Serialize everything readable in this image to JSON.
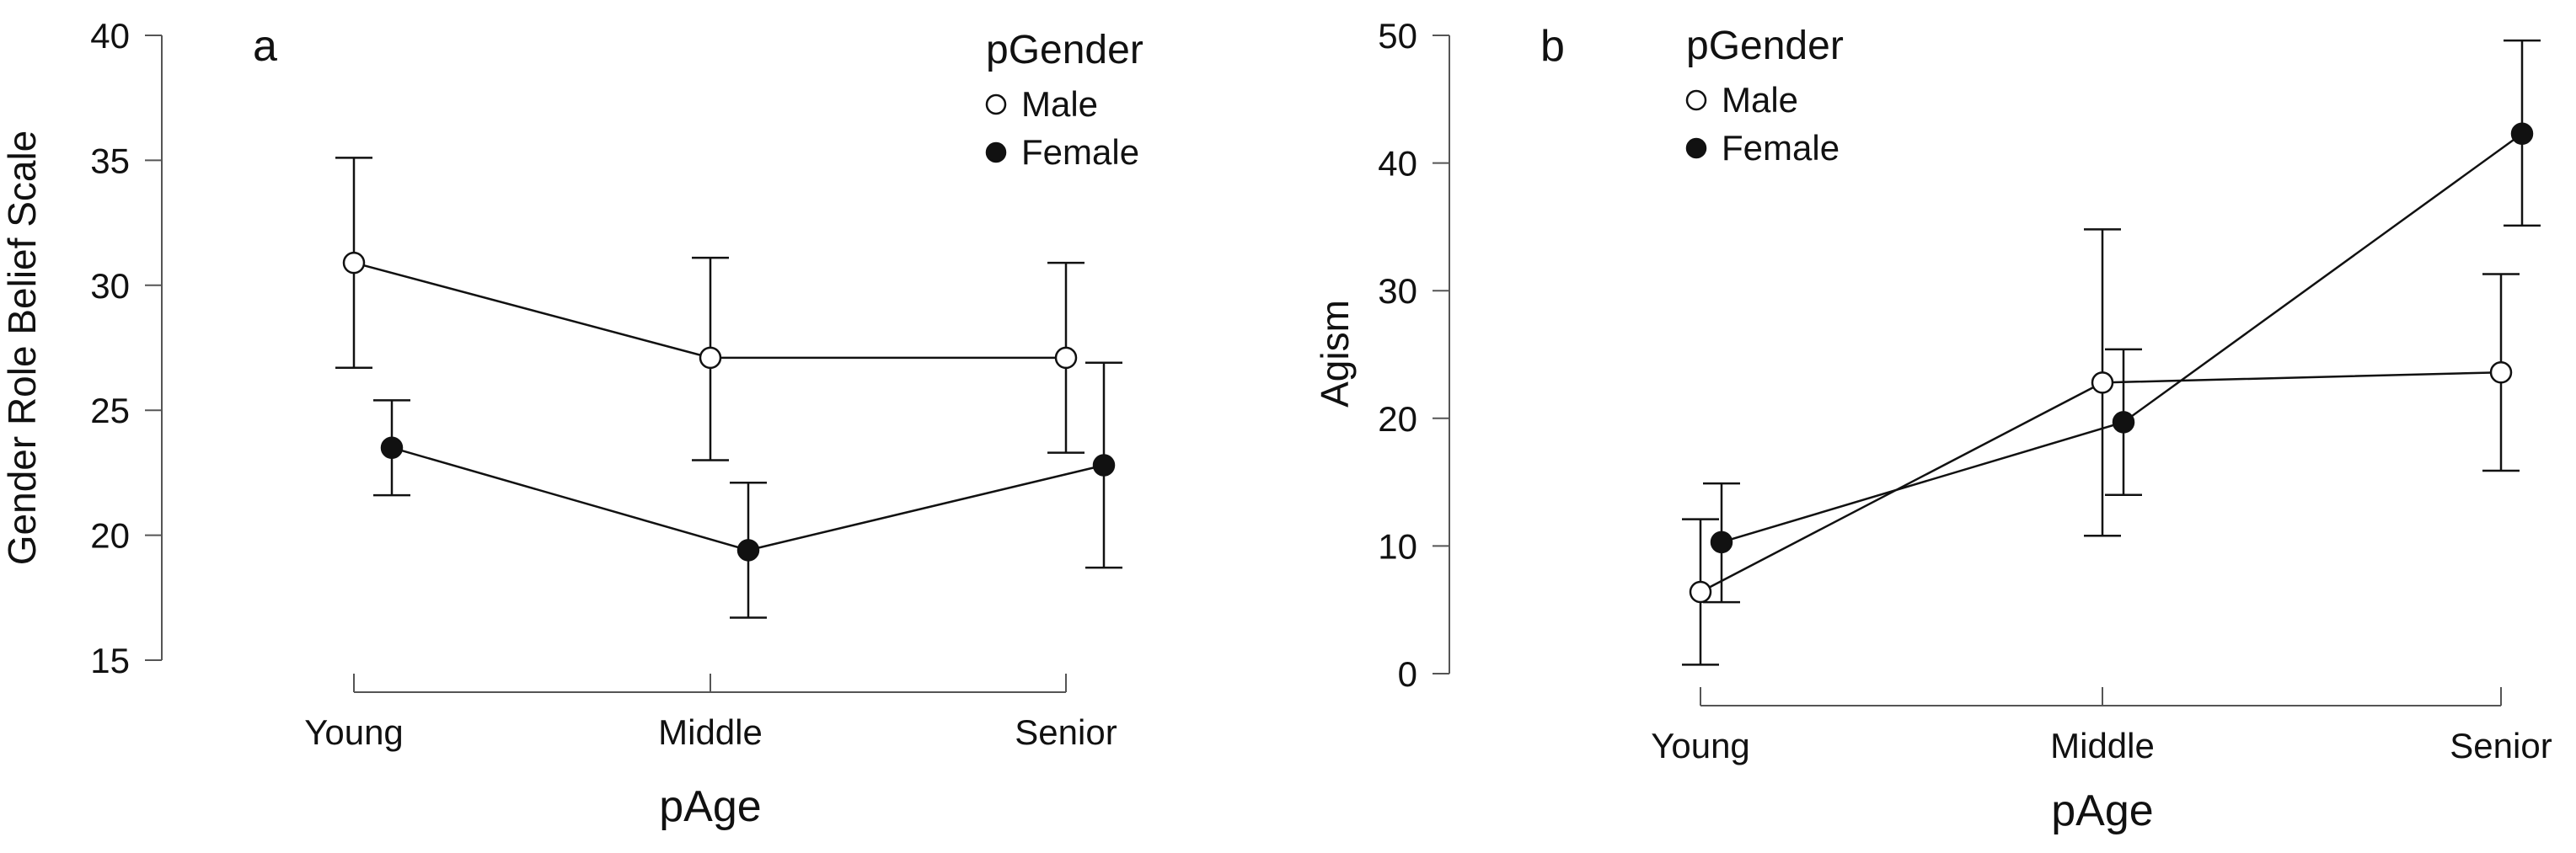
{
  "chart_data": [
    {
      "type": "line",
      "panel_label": "a",
      "title": "",
      "xlabel": "pAge",
      "ylabel": "Gender Role Belief Scale",
      "categories": [
        "Young",
        "Middle",
        "Senior"
      ],
      "ylim": [
        15,
        40
      ],
      "yticks": [
        15,
        20,
        25,
        30,
        35,
        40
      ],
      "grid": false,
      "legend": {
        "title": "pGender",
        "position": "top-right"
      },
      "series": [
        {
          "name": "Male",
          "marker": "open-circle",
          "values": [
            30.9,
            27.1,
            27.1
          ],
          "error_low": [
            26.7,
            23.0,
            23.3
          ],
          "error_high": [
            35.1,
            31.1,
            30.9
          ]
        },
        {
          "name": "Female",
          "marker": "filled-circle",
          "values": [
            23.5,
            19.4,
            22.8
          ],
          "error_low": [
            21.6,
            16.7,
            18.7
          ],
          "error_high": [
            25.4,
            22.1,
            26.9
          ]
        }
      ]
    },
    {
      "type": "line",
      "panel_label": "b",
      "title": "",
      "xlabel": "pAge",
      "ylabel": "Agism",
      "categories": [
        "Young",
        "Middle",
        "Senior"
      ],
      "ylim": [
        0,
        50
      ],
      "yticks": [
        0,
        10,
        20,
        30,
        40,
        50
      ],
      "grid": false,
      "legend": {
        "title": "pGender",
        "position": "top-left"
      },
      "series": [
        {
          "name": "Male",
          "marker": "open-circle",
          "values": [
            6.4,
            22.8,
            23.6
          ],
          "error_low": [
            0.7,
            10.8,
            15.9
          ],
          "error_high": [
            12.1,
            34.8,
            31.3
          ]
        },
        {
          "name": "Female",
          "marker": "filled-circle",
          "values": [
            10.3,
            19.7,
            42.3
          ],
          "error_low": [
            5.6,
            14.0,
            35.1
          ],
          "error_high": [
            14.9,
            25.4,
            49.6
          ]
        }
      ]
    }
  ]
}
